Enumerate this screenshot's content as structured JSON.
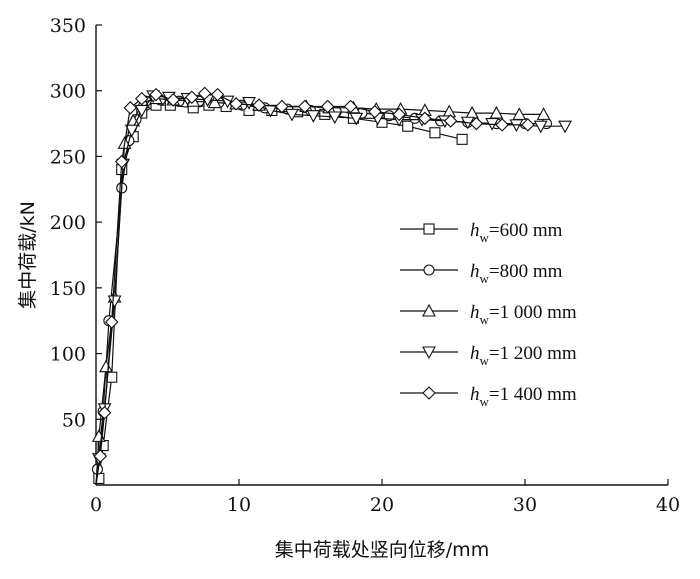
{
  "chart_data": {
    "type": "line",
    "title": "",
    "xlabel": "集中荷载处竖向位移/mm",
    "ylabel": "集中荷载/kN",
    "xlim": [
      0,
      40
    ],
    "ylim": [
      0,
      350
    ],
    "xticks": [
      0,
      10,
      20,
      30,
      40
    ],
    "yticks": [
      50,
      100,
      150,
      200,
      250,
      300,
      350
    ],
    "x_tick_labels": [
      "0",
      "10",
      "20",
      "30",
      "40"
    ],
    "y_tick_labels": [
      "50",
      "100",
      "150",
      "200",
      "250",
      "300",
      "350"
    ],
    "grid": false,
    "legend_position": "center-right",
    "series": [
      {
        "name_main": "h",
        "name_sub": "w",
        "name_rest": "=600 mm",
        "marker": "square",
        "x": [
          0.2,
          0.5,
          1.1,
          1.8,
          2.6,
          3.2,
          4.2,
          5.2,
          6.8,
          7.9,
          9.1,
          10.7,
          12.3,
          14.1,
          16.0,
          18.0,
          20.0,
          21.8,
          23.7,
          25.6
        ],
        "y": [
          5,
          30,
          82,
          240,
          265,
          283,
          289,
          289,
          287,
          289,
          288,
          285,
          285,
          284,
          282,
          279,
          276,
          273,
          268,
          263
        ]
      },
      {
        "name_main": "h",
        "name_sub": "w",
        "name_rest": "=800 mm",
        "marker": "circle",
        "x": [
          0.1,
          0.5,
          0.9,
          1.8,
          2.3,
          2.8,
          3.5,
          4.5,
          5.8,
          7.2,
          8.6,
          10.2,
          11.8,
          13.4,
          15.0,
          16.8,
          18.6,
          20.5,
          22.3,
          24.1,
          26.0,
          28.0,
          30.0,
          31.5
        ],
        "y": [
          12,
          56,
          125,
          226,
          262,
          278,
          292,
          293,
          292,
          292,
          291,
          289,
          287,
          286,
          285,
          284,
          283,
          281,
          279,
          277,
          276,
          275,
          275,
          275
        ]
      },
      {
        "name_main": "h",
        "name_sub": "w",
        "name_rest": "=1 000 mm",
        "marker": "triangle-up",
        "x": [
          0.2,
          0.7,
          1.3,
          2.0,
          2.6,
          3.3,
          4.2,
          5.4,
          6.8,
          8.3,
          9.8,
          11.4,
          13.0,
          14.7,
          16.3,
          18.0,
          19.6,
          21.3,
          23.0,
          24.7,
          26.3,
          28.0,
          29.6,
          31.3
        ],
        "y": [
          37,
          90,
          143,
          260,
          277,
          291,
          294,
          293,
          292,
          291,
          290,
          289,
          288,
          288,
          287,
          287,
          286,
          286,
          285,
          284,
          283,
          283,
          282,
          282
        ]
      },
      {
        "name_main": "h",
        "name_sub": "w",
        "name_rest": "=1 200 mm",
        "marker": "triangle-down",
        "x": [
          0.2,
          0.6,
          1.3,
          1.9,
          2.5,
          3.2,
          4.0,
          5.1,
          6.4,
          7.8,
          9.2,
          10.7,
          12.2,
          13.7,
          15.2,
          16.7,
          18.2,
          19.7,
          21.2,
          22.8,
          24.4,
          26.0,
          27.7,
          29.4,
          31.1,
          32.8
        ],
        "y": [
          20,
          58,
          140,
          244,
          270,
          285,
          296,
          295,
          294,
          293,
          292,
          291,
          285,
          282,
          281,
          280,
          279,
          279,
          278,
          278,
          277,
          276,
          275,
          274,
          273,
          273
        ]
      },
      {
        "name_main": "h",
        "name_sub": "w",
        "name_rest": "=1 400 mm",
        "marker": "diamond",
        "x": [
          0.3,
          0.6,
          1.1,
          1.8,
          2.4,
          3.2,
          4.2,
          5.4,
          6.7,
          7.6,
          8.5,
          9.8,
          11.4,
          13.0,
          14.6,
          16.2,
          17.8,
          19.5,
          21.2,
          23.0,
          24.8,
          26.6,
          28.4,
          30.2
        ],
        "y": [
          22,
          55,
          124,
          246,
          287,
          294,
          297,
          293,
          295,
          298,
          297,
          290,
          289,
          288,
          288,
          288,
          288,
          284,
          282,
          279,
          277,
          275,
          274,
          274
        ]
      }
    ]
  }
}
